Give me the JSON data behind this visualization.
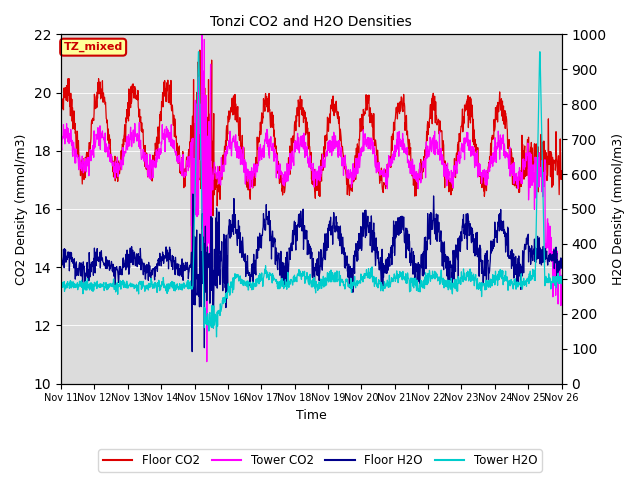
{
  "title": "Tonzi CO2 and H2O Densities",
  "xlabel": "Time",
  "ylabel_left": "CO2 Density (mmol/m3)",
  "ylabel_right": "H2O Density (mmol/m3)",
  "ylim_left": [
    10,
    22
  ],
  "ylim_right": [
    0,
    1000
  ],
  "annotation_text": "TZ_mixed",
  "annotation_box_facecolor": "#FFFF99",
  "annotation_box_edgecolor": "#CC0000",
  "annotation_text_color": "#CC0000",
  "background_color": "#FFFFFF",
  "plot_bg_color": "#DCDCDC",
  "colors": {
    "floor_co2": "#DD0000",
    "tower_co2": "#FF00FF",
    "floor_h2o": "#00008B",
    "tower_h2o": "#00CCCC"
  },
  "legend_labels": [
    "Floor CO2",
    "Tower CO2",
    "Floor H2O",
    "Tower H2O"
  ],
  "x_tick_labels": [
    "Nov 11",
    "Nov 12",
    "Nov 13",
    "Nov 14",
    "Nov 15",
    "Nov 16",
    "Nov 17",
    "Nov 18",
    "Nov 19",
    "Nov 20",
    "Nov 21",
    "Nov 22",
    "Nov 23",
    "Nov 24",
    "Nov 25",
    "Nov 26"
  ],
  "num_days": 15,
  "points_per_day": 96,
  "seed": 7
}
